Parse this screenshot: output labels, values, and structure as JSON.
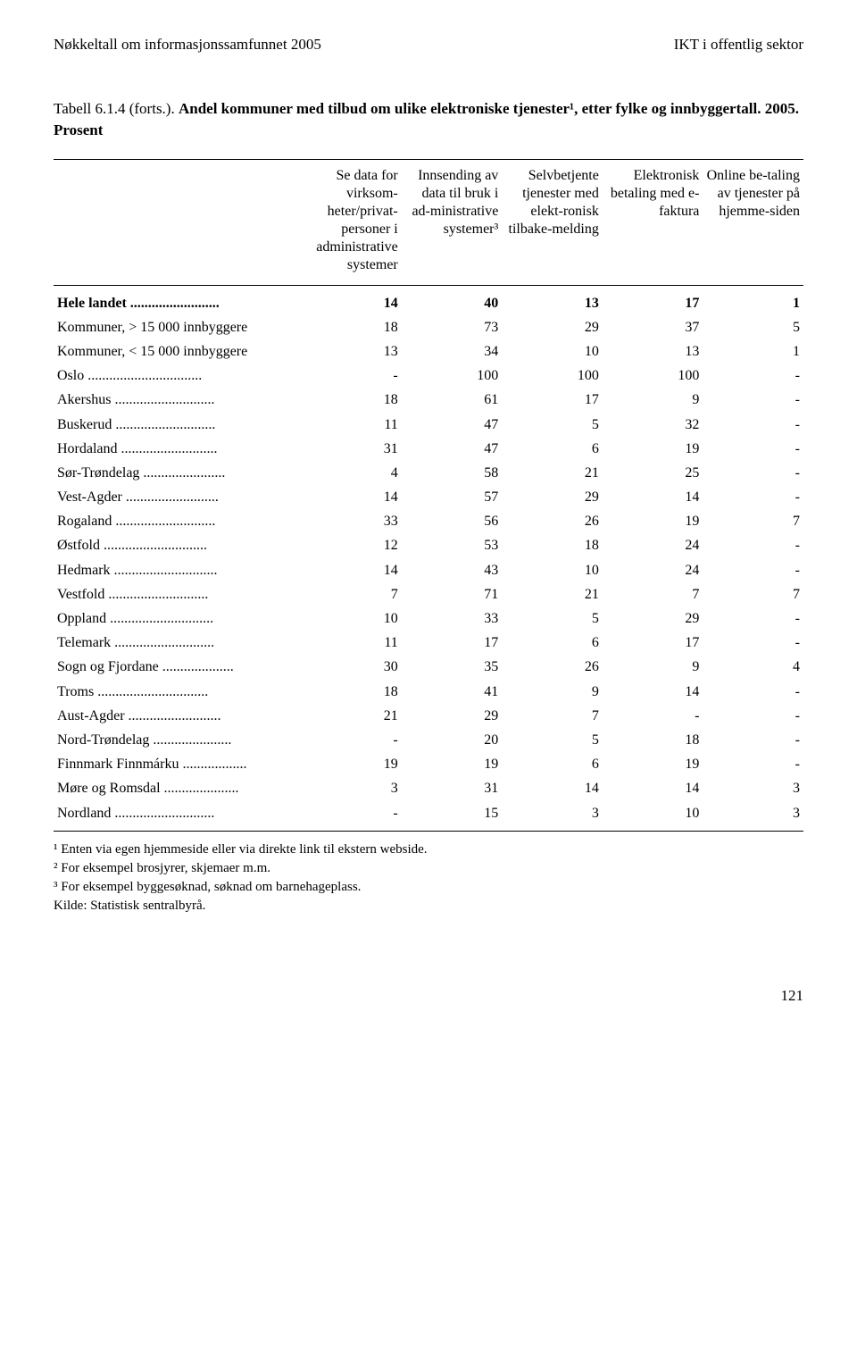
{
  "header": {
    "left": "Nøkkeltall om informasjonssamfunnet 2005",
    "right": "IKT i offentlig sektor"
  },
  "title": {
    "prefix": "Tabell 6.1.4 (forts.). ",
    "main": "Andel kommuner med tilbud om ulike elektroniske tjenester¹, etter fylke og innbyggertall. 2005. Prosent"
  },
  "columns": [
    "",
    "Se data for virksom-heter/privat-personer i administrative systemer",
    "Innsending av data til bruk i ad-ministrative systemer³",
    "Selvbetjente tjenester med elekt-ronisk tilbake-melding",
    "Elektronisk betaling med e-faktura",
    "Online be-taling av tjenester på hjemme-siden"
  ],
  "rows": [
    {
      "label": "Hele landet",
      "dots": true,
      "bold": true,
      "vals": [
        "14",
        "40",
        "13",
        "17",
        "1"
      ]
    },
    {
      "label": "Kommuner, > 15 000 innbyggere",
      "dots": false,
      "bold": false,
      "vals": [
        "18",
        "73",
        "29",
        "37",
        "5"
      ]
    },
    {
      "label": "Kommuner, < 15 000 innbyggere",
      "dots": false,
      "bold": false,
      "vals": [
        "13",
        "34",
        "10",
        "13",
        "1"
      ]
    },
    {
      "label": "Oslo",
      "dots": true,
      "bold": false,
      "vals": [
        "-",
        "100",
        "100",
        "100",
        "-"
      ]
    },
    {
      "label": "Akershus",
      "dots": true,
      "bold": false,
      "vals": [
        "18",
        "61",
        "17",
        "9",
        "-"
      ]
    },
    {
      "label": "Buskerud",
      "dots": true,
      "bold": false,
      "vals": [
        "11",
        "47",
        "5",
        "32",
        "-"
      ]
    },
    {
      "label": "Hordaland",
      "dots": true,
      "bold": false,
      "vals": [
        "31",
        "47",
        "6",
        "19",
        "-"
      ]
    },
    {
      "label": "Sør-Trøndelag",
      "dots": true,
      "bold": false,
      "vals": [
        "4",
        "58",
        "21",
        "25",
        "-"
      ]
    },
    {
      "label": "Vest-Agder",
      "dots": true,
      "bold": false,
      "vals": [
        "14",
        "57",
        "29",
        "14",
        "-"
      ]
    },
    {
      "label": "Rogaland",
      "dots": true,
      "bold": false,
      "vals": [
        "33",
        "56",
        "26",
        "19",
        "7"
      ]
    },
    {
      "label": "Østfold",
      "dots": true,
      "bold": false,
      "vals": [
        "12",
        "53",
        "18",
        "24",
        "-"
      ]
    },
    {
      "label": "Hedmark",
      "dots": true,
      "bold": false,
      "vals": [
        "14",
        "43",
        "10",
        "24",
        "-"
      ]
    },
    {
      "label": "Vestfold",
      "dots": true,
      "bold": false,
      "vals": [
        "7",
        "71",
        "21",
        "7",
        "7"
      ]
    },
    {
      "label": "Oppland",
      "dots": true,
      "bold": false,
      "vals": [
        "10",
        "33",
        "5",
        "29",
        "-"
      ]
    },
    {
      "label": "Telemark",
      "dots": true,
      "bold": false,
      "vals": [
        "11",
        "17",
        "6",
        "17",
        "-"
      ]
    },
    {
      "label": "Sogn og Fjordane",
      "dots": true,
      "bold": false,
      "vals": [
        "30",
        "35",
        "26",
        "9",
        "4"
      ]
    },
    {
      "label": "Troms",
      "dots": true,
      "bold": false,
      "vals": [
        "18",
        "41",
        "9",
        "14",
        "-"
      ]
    },
    {
      "label": "Aust-Agder",
      "dots": true,
      "bold": false,
      "vals": [
        "21",
        "29",
        "7",
        "-",
        "-"
      ]
    },
    {
      "label": "Nord-Trøndelag",
      "dots": true,
      "bold": false,
      "vals": [
        "-",
        "20",
        "5",
        "18",
        "-"
      ]
    },
    {
      "label": "Finnmark Finnmárku",
      "dots": true,
      "bold": false,
      "vals": [
        "19",
        "19",
        "6",
        "19",
        "-"
      ]
    },
    {
      "label": "Møre og Romsdal",
      "dots": true,
      "bold": false,
      "vals": [
        "3",
        "31",
        "14",
        "14",
        "3"
      ]
    },
    {
      "label": "Nordland",
      "dots": true,
      "bold": false,
      "vals": [
        "-",
        "15",
        "3",
        "10",
        "3"
      ]
    }
  ],
  "footnotes": [
    "¹ Enten via egen hjemmeside eller via direkte link til ekstern webside.",
    "² For eksempel brosjyrer, skjemaer m.m.",
    "³ For eksempel byggesøknad, søknad om barnehageplass.",
    "Kilde: Statistisk sentralbyrå."
  ],
  "page_number": "121",
  "style": {
    "label_col_width_chars": 36
  }
}
